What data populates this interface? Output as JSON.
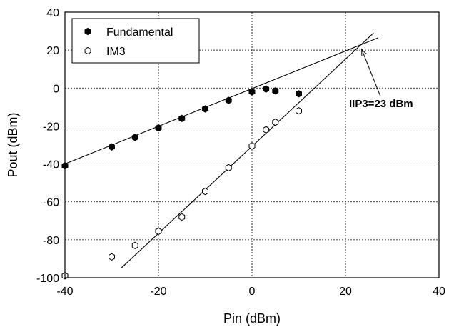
{
  "chart_data": {
    "type": "scatter",
    "xlabel": "Pin (dBm)",
    "ylabel": "Pout  (dBm)",
    "xlim": [
      -40,
      40
    ],
    "ylim": [
      -100,
      40
    ],
    "xticks": [
      -40,
      -20,
      0,
      20,
      40
    ],
    "yticks": [
      -100,
      -80,
      -60,
      -40,
      -20,
      0,
      20,
      40
    ],
    "x_tick_labels": [
      "-40",
      "-20",
      "0",
      "20",
      "40"
    ],
    "y_tick_labels": [
      "-100",
      "-80",
      "-60",
      "-40",
      "-20",
      "0",
      "20",
      "40"
    ],
    "grid": true,
    "legend_position": "top-left",
    "series": [
      {
        "name": "Fundamental",
        "marker": "filled-hexagon",
        "x": [
          -40,
          -30,
          -25,
          -20,
          -15,
          -10,
          -5,
          0,
          3,
          5,
          10
        ],
        "y": [
          -41,
          -31,
          -26,
          -21,
          -16,
          -11,
          -6.5,
          -2,
          -0.5,
          -1.5,
          -3
        ]
      },
      {
        "name": "IM3",
        "marker": "open-hexagon",
        "x": [
          -40,
          -30,
          -25,
          -20,
          -15,
          -10,
          -5,
          0,
          3,
          5,
          10
        ],
        "y": [
          -99,
          -89,
          -83,
          -75.5,
          -68,
          -54.5,
          -42,
          -30.5,
          -22,
          -18,
          -12
        ]
      }
    ],
    "fit_lines": [
      {
        "series": "Fundamental",
        "x": [
          -40,
          27
        ],
        "y": [
          -40,
          26.5
        ]
      },
      {
        "series": "IM3",
        "x": [
          -28,
          26
        ],
        "y": [
          -95,
          29
        ]
      }
    ],
    "annotations": [
      {
        "text": "IIP3=23 dBm",
        "points_to": [
          23,
          22
        ]
      }
    ]
  }
}
